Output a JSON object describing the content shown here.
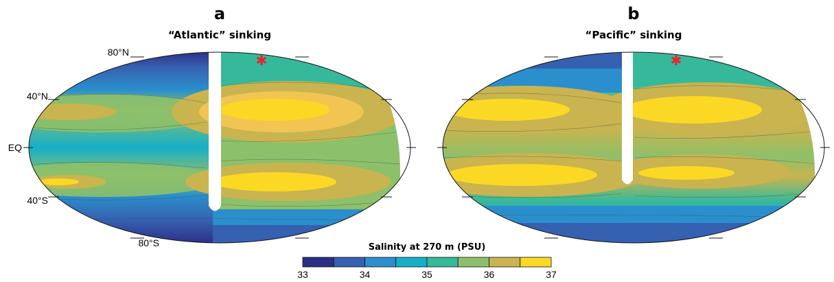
{
  "panels": [
    {
      "letter": "a",
      "title": "“Atlantic” sinking"
    },
    {
      "letter": "b",
      "title": "“Pacific” sinking"
    }
  ],
  "lat_labels": [
    "80°N",
    "40°N",
    "EQ",
    "40°S",
    "80°S"
  ],
  "marker": {
    "symbol": "✱",
    "color": "#e8262b"
  },
  "colorbar": {
    "title": "Salinity at 270 m (PSU)",
    "ticks": [
      "33",
      "34",
      "35",
      "36",
      "37"
    ],
    "colors": [
      "#2c2f86",
      "#3660b0",
      "#2a8fcc",
      "#17aec8",
      "#35b99a",
      "#8dc06a",
      "#c9b44f",
      "#fbd824"
    ]
  }
}
